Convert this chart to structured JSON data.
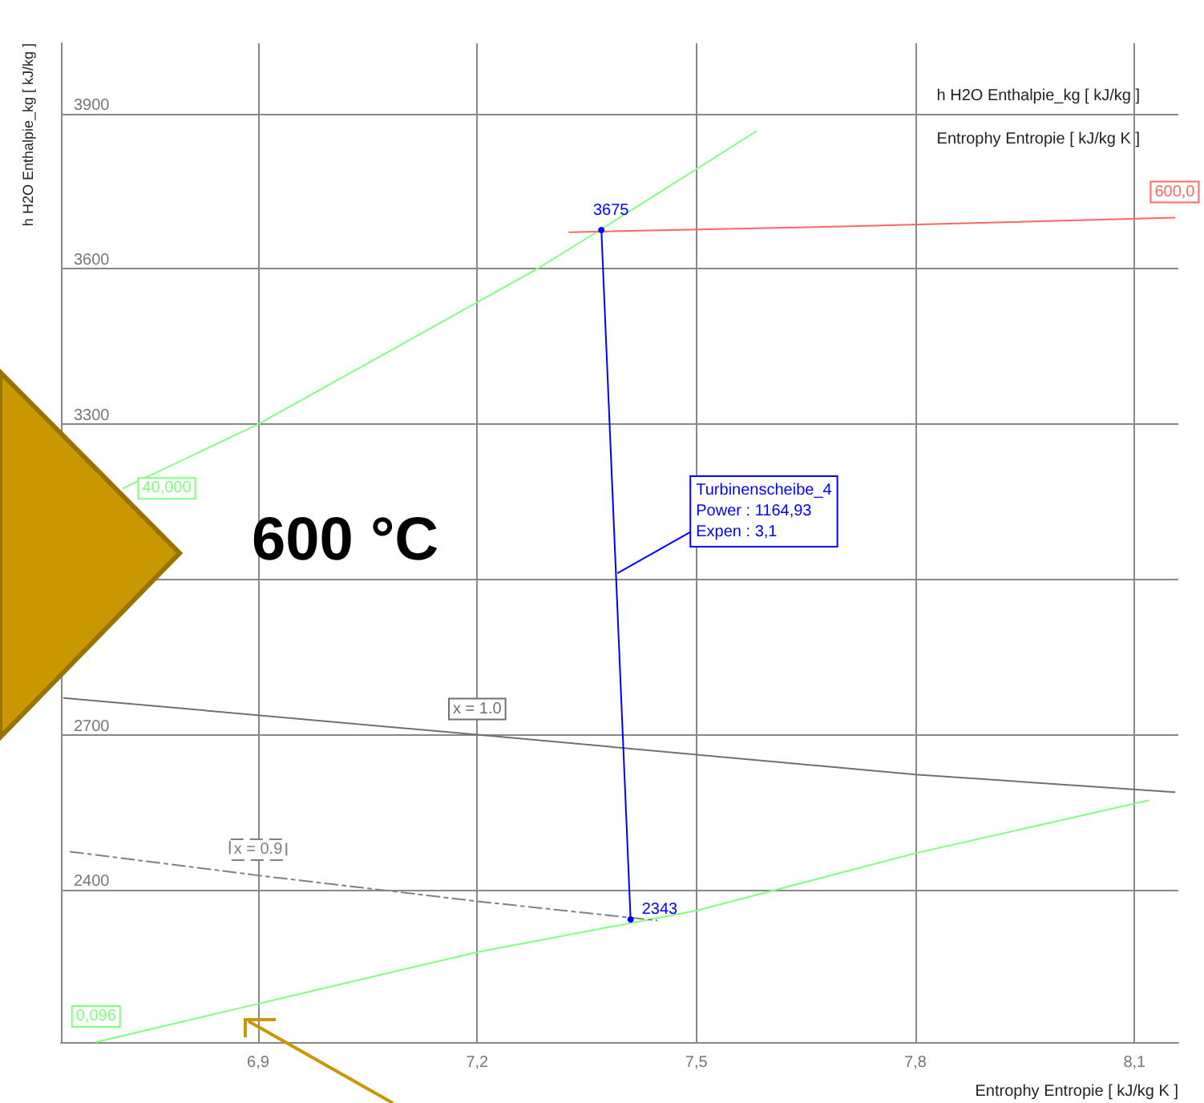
{
  "chart_data": {
    "type": "line",
    "xlabel": "Entrophy Entropie [ kJ/kg K ]",
    "ylabel": "h H2O Enthalpie_kg [ kJ/kg ]",
    "xlim": [
      6.63,
      8.16
    ],
    "ylim": [
      2106,
      4036
    ],
    "xticks": [
      {
        "value": 6.9,
        "label": "6,9"
      },
      {
        "value": 7.2,
        "label": "7,2"
      },
      {
        "value": 7.5,
        "label": "7,5"
      },
      {
        "value": 7.8,
        "label": "7,8"
      },
      {
        "value": 8.1,
        "label": "8,1"
      }
    ],
    "yticks": [
      2400,
      2700,
      {
        "value": 3000,
        "label": null
      },
      3300,
      3600,
      3900
    ],
    "grid": true,
    "legend": false,
    "marker": "none",
    "series": [
      {
        "name": "40,000",
        "color": "#80ff80",
        "x": [
          6.715,
          6.9,
          7.282,
          7.37,
          7.582
        ],
        "values": [
          3176,
          3300,
          3600,
          3677,
          3866
        ]
      },
      {
        "name": "0,096",
        "color": "#80ff80",
        "x": [
          6.678,
          7.2,
          7.5,
          7.8,
          8.119
        ],
        "values": [
          2106,
          2280,
          2360,
          2471,
          2573
        ]
      },
      {
        "name": "600,0",
        "color": "#ff6666",
        "x": [
          7.326,
          7.7,
          8.155
        ],
        "values": [
          3671,
          3682,
          3699
        ]
      },
      {
        "name": "x = 1.0",
        "color": "#707070",
        "x": [
          6.634,
          7.2,
          7.8,
          8.155
        ],
        "values": [
          2771,
          2700,
          2623,
          2589
        ]
      },
      {
        "name": "x = 0.9",
        "color": "#808080",
        "line_style": "dashed",
        "x": [
          6.643,
          6.9,
          7.2,
          7.446
        ],
        "values": [
          2474,
          2428,
          2378,
          2341
        ]
      },
      {
        "color": "#0000ff",
        "marker": "circle",
        "x": [
          7.37,
          7.41
        ],
        "values": [
          3675,
          2343
        ],
        "value_labels": [
          "3675",
          "2343"
        ]
      }
    ],
    "annotations": [
      "h H2O Enthalpie_kg [ kJ/kg ]",
      "Entrophy Entropie [ kJ/kg K ]",
      "600 °C",
      {
        "text": "Turbinenscheibe_4\nPower : 1164,93\nExpen : 3,1",
        "x": 7.392,
        "y": 3012
      }
    ]
  }
}
